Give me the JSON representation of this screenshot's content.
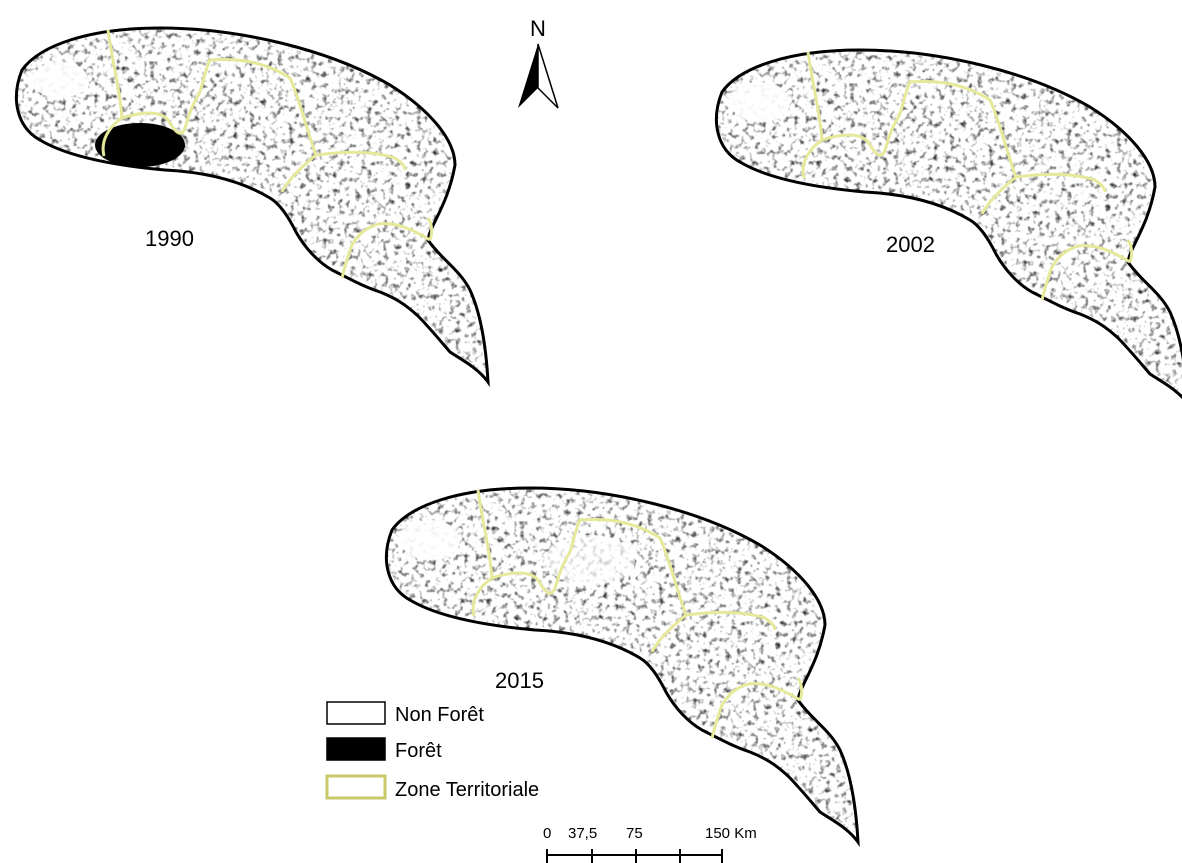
{
  "maps": [
    {
      "year": "1990"
    },
    {
      "year": "2002"
    },
    {
      "year": "2015"
    }
  ],
  "north_arrow": {
    "label": "N"
  },
  "legend": {
    "items": [
      {
        "label": "Non Forêt",
        "swatch": "#ffffff"
      },
      {
        "label": "Forêt",
        "swatch": "#000000"
      },
      {
        "label": "Zone Territoriale",
        "swatch": "#e6e89a"
      }
    ]
  },
  "scale_bar": {
    "labels": [
      "0",
      "37,5",
      "75",
      "150 Km"
    ]
  },
  "colors": {
    "forest": "#000000",
    "non_forest": "#ffffff",
    "boundary": "#e6e89a",
    "outline": "#000000"
  }
}
